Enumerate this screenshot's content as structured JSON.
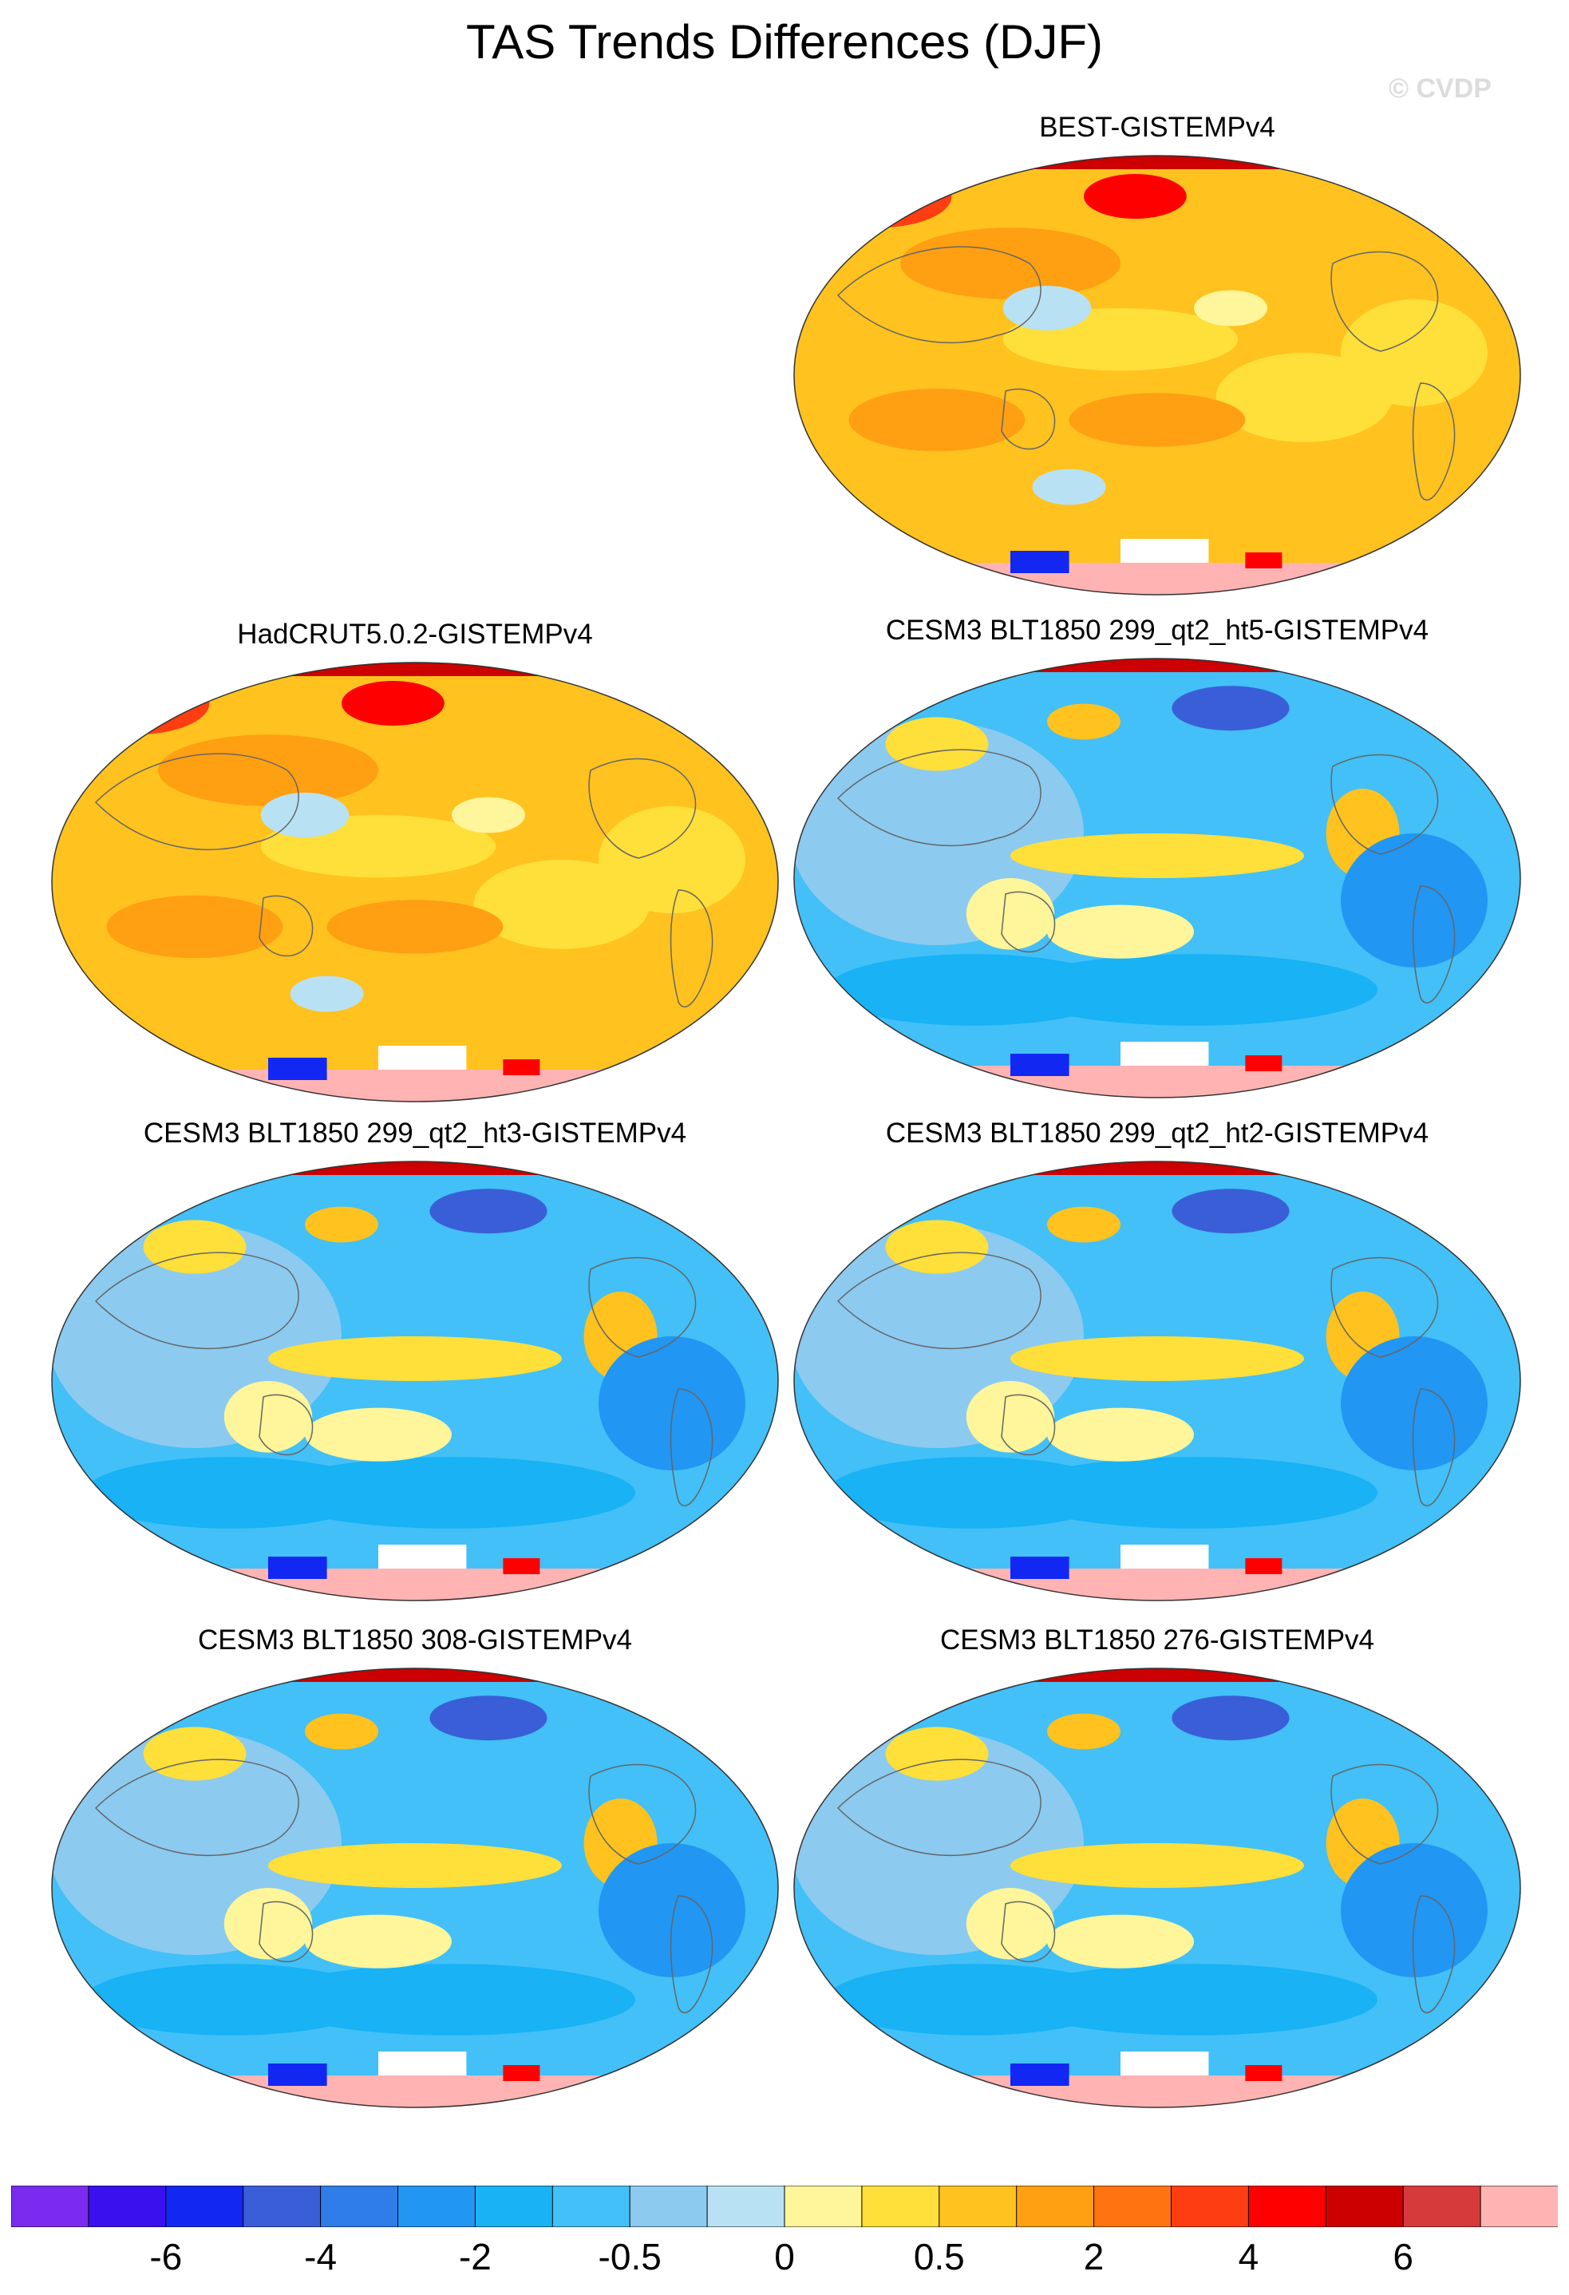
{
  "figure": {
    "title": "TAS Trends Differences (DJF)",
    "watermark": "© CVDP"
  },
  "panels": [
    {
      "title": "BEST-GISTEMPv4",
      "regime": "warm"
    },
    {
      "title": "HadCRUT5.0.2-GISTEMPv4",
      "regime": "warm"
    },
    {
      "title": "CESM3 BLT1850 299_qt2_ht5-GISTEMPv4",
      "regime": "cool"
    },
    {
      "title": "CESM3 BLT1850 299_qt2_ht3-GISTEMPv4",
      "regime": "cool"
    },
    {
      "title": "CESM3 BLT1850 299_qt2_ht2-GISTEMPv4",
      "regime": "cool"
    },
    {
      "title": "CESM3 BLT1850 308-GISTEMPv4",
      "regime": "cool"
    },
    {
      "title": "CESM3 BLT1850 276-GISTEMPv4",
      "regime": "cool"
    }
  ],
  "colorbar": {
    "colors": [
      "#7b2bef",
      "#3a10ef",
      "#1228f2",
      "#3a5ed8",
      "#2f7de8",
      "#2196f3",
      "#18b2f5",
      "#42c0f7",
      "#8ccaf0",
      "#b9e1f4",
      "#fff59a",
      "#ffdf3a",
      "#ffc21e",
      "#ff9f12",
      "#ff7410",
      "#ff3d12",
      "#ff0000",
      "#cc0000",
      "#d63a3a",
      "#ffb3b3"
    ],
    "labels": [
      "-6",
      "-4",
      "-2",
      "-0.5",
      "0",
      "0.5",
      "2",
      "4",
      "6"
    ]
  }
}
